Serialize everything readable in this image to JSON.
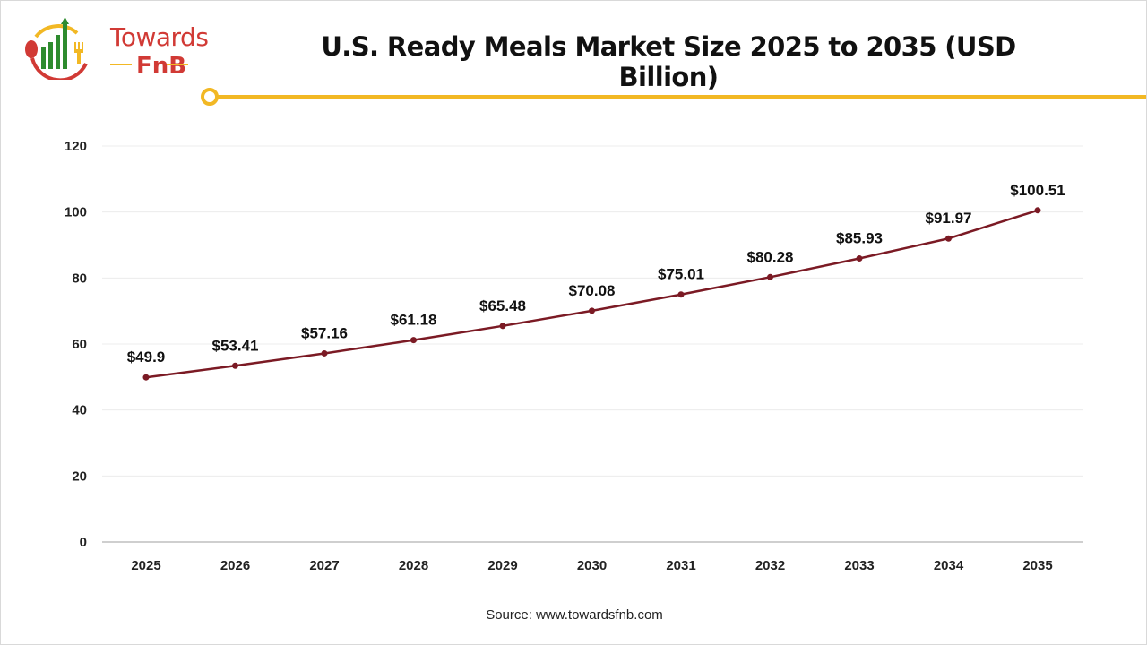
{
  "logo": {
    "line1": "Towards",
    "line2": "FnB"
  },
  "source": "Source: www.towardsfnb.com",
  "colors": {
    "line": "#7b1a24",
    "accent": "#f2b824",
    "logo_red": "#d13a35",
    "logo_green": "#2e8b2e"
  },
  "chart_data": {
    "type": "line",
    "title": "U.S. Ready Meals Market Size 2025 to 2035 (USD Billion)",
    "categories": [
      "2025",
      "2026",
      "2027",
      "2028",
      "2029",
      "2030",
      "2031",
      "2032",
      "2033",
      "2034",
      "2035"
    ],
    "values": [
      49.9,
      53.41,
      57.16,
      61.18,
      65.48,
      70.08,
      75.01,
      80.28,
      85.93,
      91.97,
      100.51
    ],
    "data_labels": [
      "$49.9",
      "$53.41",
      "$57.16",
      "$61.18",
      "$65.48",
      "$70.08",
      "$75.01",
      "$80.28",
      "$85.93",
      "$91.97",
      "$100.51"
    ],
    "ylim": [
      0,
      120
    ],
    "yticks": [
      0,
      20,
      40,
      60,
      80,
      100,
      120
    ],
    "grid": true,
    "xlabel": "",
    "ylabel": ""
  }
}
